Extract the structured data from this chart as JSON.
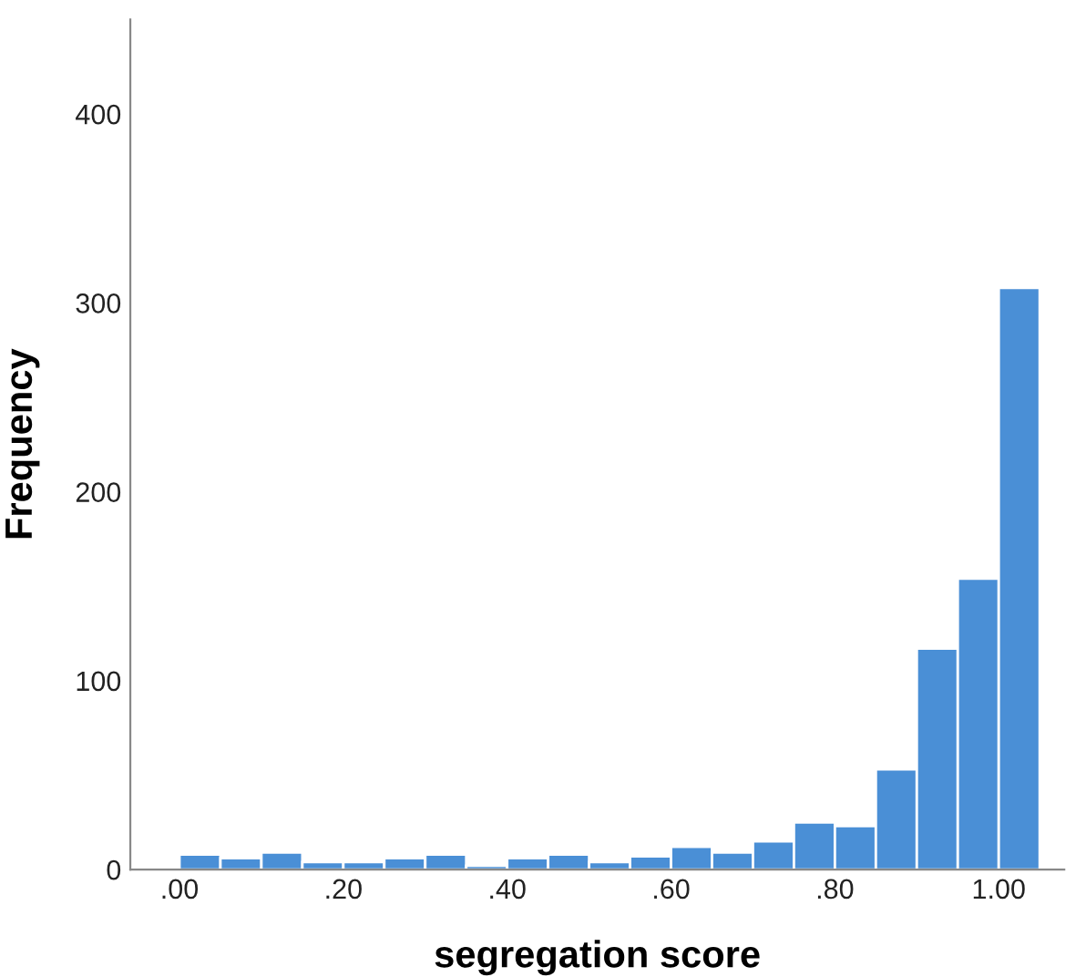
{
  "chart_data": {
    "type": "histogram",
    "xlabel": "segregation score",
    "ylabel": "Frequency",
    "bins": [
      0.0,
      0.05,
      0.1,
      0.15,
      0.2,
      0.25,
      0.3,
      0.35,
      0.4,
      0.45,
      0.5,
      0.55,
      0.6,
      0.65,
      0.7,
      0.75,
      0.8,
      0.85,
      0.9,
      0.95,
      1.0,
      1.05
    ],
    "values": [
      8,
      6,
      9,
      4,
      4,
      6,
      8,
      2,
      6,
      8,
      4,
      7,
      12,
      9,
      15,
      25,
      23,
      53,
      117,
      154,
      308
    ],
    "color": "#4a8fd6",
    "xlim": [
      -0.06,
      1.08
    ],
    "xticks": [
      {
        "value": 0.0,
        "label": ".00"
      },
      {
        "value": 0.2,
        "label": ".20"
      },
      {
        "value": 0.4,
        "label": ".40"
      },
      {
        "value": 0.6,
        "label": ".60"
      },
      {
        "value": 0.8,
        "label": ".80"
      },
      {
        "value": 1.0,
        "label": "1.00"
      }
    ],
    "ylim": [
      0,
      450
    ],
    "yticks": [
      0,
      100,
      200,
      300,
      400
    ],
    "grid": false
  }
}
